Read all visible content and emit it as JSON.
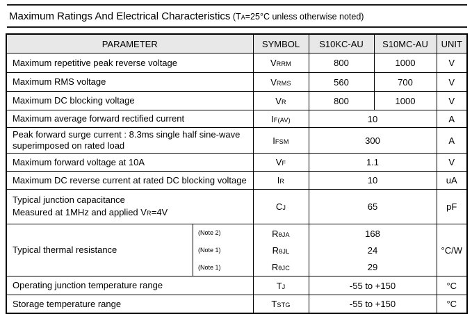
{
  "title": {
    "main": "Maximum Ratings And Electrical Characteristics",
    "condition_pre": "(T",
    "condition_sub": "A",
    "condition_post": "=25°C unless otherwise noted)"
  },
  "table": {
    "headers": [
      "PARAMETER",
      "SYMBOL",
      "S10KC-AU",
      "S10MC-AU",
      "UNIT"
    ],
    "rows": [
      {
        "param_lines": [
          [
            {
              "t": "Maximum repetitive peak reverse voltage"
            }
          ]
        ],
        "symbol": {
          "base": "V",
          "sub": "RRM"
        },
        "values": [
          "800",
          "1000"
        ],
        "unit": "V"
      },
      {
        "param_lines": [
          [
            {
              "t": "Maximum RMS voltage"
            }
          ]
        ],
        "symbol": {
          "base": "V",
          "sub": "RMS"
        },
        "values": [
          "560",
          "700"
        ],
        "unit": "V"
      },
      {
        "param_lines": [
          [
            {
              "t": "Maximum DC blocking voltage"
            }
          ]
        ],
        "symbol": {
          "base": "V",
          "sub": "R"
        },
        "values": [
          "800",
          "1000"
        ],
        "unit": "V"
      },
      {
        "param_lines": [
          [
            {
              "t": "Maximum average forward rectified current"
            }
          ]
        ],
        "symbol": {
          "base": "I",
          "sub": "F(AV)"
        },
        "value": "10",
        "unit": "A"
      },
      {
        "param_lines": [
          [
            {
              "t": "Peak forward surge current : 8.3ms single half sine-wave superimposed on rated load"
            }
          ]
        ],
        "symbol": {
          "base": "I",
          "sub": "FSM"
        },
        "value": "300",
        "unit": "A"
      },
      {
        "param_lines": [
          [
            {
              "t": "Maximum forward voltage at 10A"
            }
          ]
        ],
        "symbol": {
          "base": "V",
          "sub": "F"
        },
        "value": "1.1",
        "unit": "V"
      },
      {
        "param_lines": [
          [
            {
              "t": "Maximum DC reverse current at rated DC blocking voltage"
            }
          ]
        ],
        "symbol": {
          "base": "I",
          "sub": "R"
        },
        "value": "10",
        "unit": "uA"
      },
      {
        "param_lines": [
          [
            {
              "t": "Typical junction capacitance"
            }
          ],
          [
            {
              "t": "Measured at 1MHz and applied V"
            },
            {
              "t": "R",
              "sub": true
            },
            {
              "t": "=4V"
            }
          ]
        ],
        "symbol": {
          "base": "C",
          "sub": "J"
        },
        "value": "65",
        "unit": "pF"
      },
      {
        "param_lines": [
          [
            {
              "t": "Typical thermal resistance"
            }
          ]
        ],
        "subrows": [
          {
            "note": "(Note 2)",
            "symbol": {
              "base": "R",
              "sub": "θJA"
            },
            "value": "168"
          },
          {
            "note": "(Note 1)",
            "symbol": {
              "base": "R",
              "sub": "θJL"
            },
            "value": "24"
          },
          {
            "note": "(Note 1)",
            "symbol": {
              "base": "R",
              "sub": "θJC"
            },
            "value": "29"
          }
        ],
        "unit": "°C/W"
      },
      {
        "param_lines": [
          [
            {
              "t": "Operating junction temperature range"
            }
          ]
        ],
        "symbol": {
          "base": "T",
          "sub": "J"
        },
        "value": "-55 to +150",
        "unit": "°C"
      },
      {
        "param_lines": [
          [
            {
              "t": "Storage temperature range"
            }
          ]
        ],
        "symbol": {
          "base": "T",
          "sub": "STG"
        },
        "value": "-55 to +150",
        "unit": "°C"
      }
    ]
  }
}
